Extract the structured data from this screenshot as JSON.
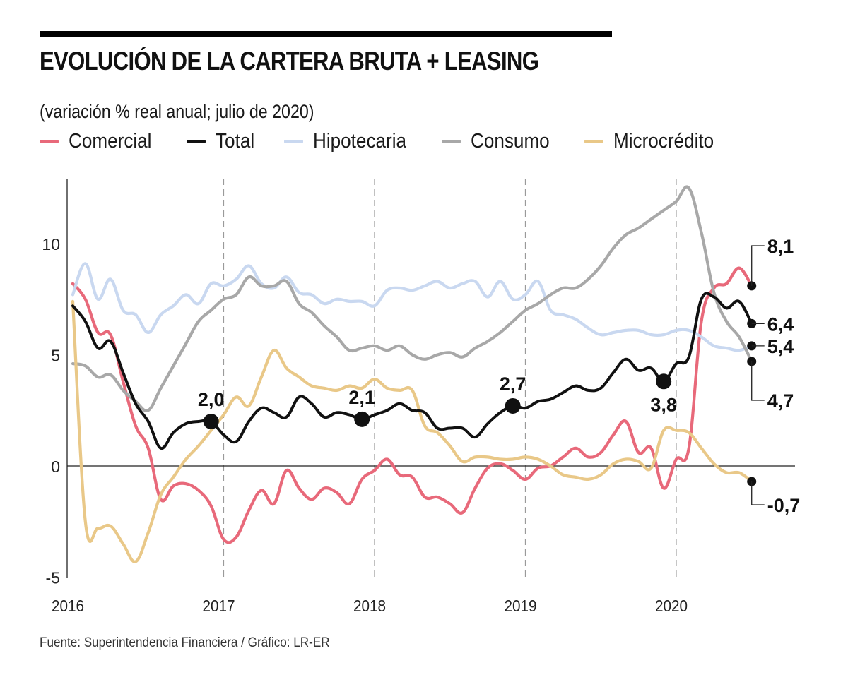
{
  "header": {
    "title": "EVOLUCIÓN DE LA CARTERA BRUTA + LEASING",
    "subtitle": "(variación % real anual; julio de 2020)"
  },
  "legend": [
    {
      "label": "Comercial",
      "color": "#e8697a"
    },
    {
      "label": "Total",
      "color": "#111111"
    },
    {
      "label": "Hipotecaria",
      "color": "#c9d8f0"
    },
    {
      "label": "Consumo",
      "color": "#a8a8a8"
    },
    {
      "label": "Microcrédito",
      "color": "#e9c888"
    }
  ],
  "footer": {
    "source": "Fuente: Superintendencia Financiera / Gráfico: LR-ER"
  },
  "chart_data": {
    "type": "line",
    "title": "EVOLUCIÓN DE LA CARTERA BRUTA + LEASING",
    "subtitle": "(variación % real anual; julio de 2020)",
    "xlabel": "",
    "ylabel": "variación % real anual",
    "x_start": "2016-01",
    "x_end": "2020-07",
    "x_frequency": "monthly",
    "x_ticks": [
      {
        "label": "2016",
        "month_index": 0
      },
      {
        "label": "2017",
        "month_index": 12
      },
      {
        "label": "2018",
        "month_index": 24
      },
      {
        "label": "2019",
        "month_index": 36
      },
      {
        "label": "2020",
        "month_index": 48
      }
    ],
    "y_ticks": [
      {
        "label": "10",
        "value": 10
      },
      {
        "label": "5",
        "value": 5
      },
      {
        "label": "0",
        "value": 0
      },
      {
        "label": "-5",
        "value": -5
      }
    ],
    "ylim": [
      -5,
      12.7
    ],
    "xlim_months": [
      0,
      55.5
    ],
    "grid": "dashed vertical lines at each year; solid zero line",
    "legend_position": "top",
    "series": [
      {
        "name": "Comercial",
        "color": "#e8697a",
        "values": [
          8.2,
          7.5,
          6.0,
          5.9,
          3.8,
          1.8,
          0.8,
          -1.5,
          -0.9,
          -0.8,
          -1.1,
          -1.8,
          -3.3,
          -3.2,
          -2.0,
          -1.1,
          -1.7,
          -0.2,
          -1.0,
          -1.5,
          -1.0,
          -1.2,
          -1.7,
          -0.6,
          -0.2,
          0.3,
          -0.4,
          -0.5,
          -1.4,
          -1.4,
          -1.7,
          -2.1,
          -1.0,
          -0.1,
          0.1,
          -0.2,
          -0.6,
          -0.1,
          0.0,
          0.4,
          0.8,
          0.4,
          0.6,
          1.4,
          2.0,
          0.6,
          0.8,
          -1.0,
          0.3,
          0.8,
          6.5,
          8.0,
          8.2,
          8.9,
          8.1
        ]
      },
      {
        "name": "Hipotecaria",
        "color": "#c9d8f0",
        "values": [
          7.7,
          9.1,
          7.5,
          8.4,
          7.0,
          6.8,
          6.0,
          6.8,
          7.2,
          7.7,
          7.3,
          8.2,
          8.1,
          8.4,
          9.0,
          8.2,
          8.0,
          8.5,
          7.8,
          7.7,
          7.3,
          7.5,
          7.4,
          7.4,
          7.2,
          7.9,
          8.0,
          7.9,
          8.1,
          8.3,
          8.0,
          8.2,
          8.3,
          7.6,
          8.3,
          7.5,
          7.7,
          8.3,
          7.0,
          6.8,
          6.6,
          6.2,
          5.9,
          6.0,
          6.1,
          6.1,
          5.9,
          5.9,
          6.1,
          6.1,
          5.8,
          5.4,
          5.3,
          5.2,
          5.4
        ]
      },
      {
        "name": "Consumo",
        "color": "#a8a8a8",
        "values": [
          4.6,
          4.5,
          4.0,
          4.1,
          3.4,
          2.9,
          2.5,
          3.5,
          4.5,
          5.5,
          6.5,
          7.0,
          7.5,
          7.7,
          8.5,
          8.1,
          8.1,
          8.3,
          7.3,
          6.9,
          6.3,
          5.8,
          5.2,
          5.3,
          5.4,
          5.2,
          5.4,
          5.0,
          4.8,
          5.0,
          5.1,
          4.9,
          5.3,
          5.6,
          6.0,
          6.5,
          7.0,
          7.3,
          7.7,
          8.0,
          8.0,
          8.4,
          9.0,
          9.8,
          10.4,
          10.7,
          11.1,
          11.5,
          11.9,
          12.5,
          10.5,
          7.8,
          6.5,
          5.8,
          4.7
        ]
      },
      {
        "name": "Microcrédito",
        "color": "#e9c888",
        "values": [
          7.4,
          -2.5,
          -2.8,
          -2.7,
          -3.5,
          -4.3,
          -3.0,
          -1.3,
          -0.5,
          0.3,
          0.9,
          1.6,
          2.3,
          3.1,
          2.7,
          4.0,
          5.2,
          4.4,
          4.0,
          3.6,
          3.5,
          3.4,
          3.6,
          3.5,
          3.9,
          3.5,
          3.4,
          3.4,
          1.8,
          1.5,
          0.9,
          0.2,
          0.4,
          0.4,
          0.3,
          0.3,
          0.4,
          0.3,
          0.0,
          -0.4,
          -0.5,
          -0.6,
          -0.4,
          0.1,
          0.3,
          0.2,
          -0.1,
          1.6,
          1.6,
          1.5,
          0.8,
          0.1,
          -0.3,
          -0.3,
          -0.7
        ]
      },
      {
        "name": "Total",
        "color": "#111111",
        "values": [
          7.2,
          6.5,
          5.3,
          5.6,
          4.2,
          2.8,
          2.0,
          0.8,
          1.5,
          1.9,
          2.0,
          2.0,
          1.4,
          1.1,
          2.0,
          2.6,
          2.4,
          2.2,
          3.1,
          2.8,
          2.2,
          2.4,
          2.3,
          2.1,
          2.3,
          2.5,
          2.8,
          2.5,
          2.4,
          1.7,
          1.7,
          1.7,
          1.3,
          1.9,
          2.4,
          2.7,
          2.6,
          2.9,
          3.0,
          3.3,
          3.6,
          3.4,
          3.5,
          4.2,
          4.8,
          4.3,
          4.4,
          3.8,
          4.6,
          4.9,
          7.5,
          7.6,
          7.1,
          7.4,
          6.4
        ]
      }
    ],
    "annotations": [
      {
        "series": "Total",
        "month_index": 11,
        "value": 2.0,
        "label": "2,0",
        "position": "above"
      },
      {
        "series": "Total",
        "month_index": 23,
        "value": 2.1,
        "label": "2,1",
        "position": "above"
      },
      {
        "series": "Total",
        "month_index": 35,
        "value": 2.7,
        "label": "2,7",
        "position": "above"
      },
      {
        "series": "Total",
        "month_index": 47,
        "value": 3.8,
        "label": "3,8",
        "position": "below"
      }
    ],
    "end_labels": [
      {
        "series": "Comercial",
        "value": 8.1,
        "label": "8,1"
      },
      {
        "series": "Total",
        "value": 6.4,
        "label": "6,4"
      },
      {
        "series": "Hipotecaria",
        "value": 5.4,
        "label": "5,4"
      },
      {
        "series": "Consumo",
        "value": 4.7,
        "label": "4,7"
      },
      {
        "series": "Microcrédito",
        "value": -0.7,
        "label": "-0,7"
      }
    ]
  }
}
